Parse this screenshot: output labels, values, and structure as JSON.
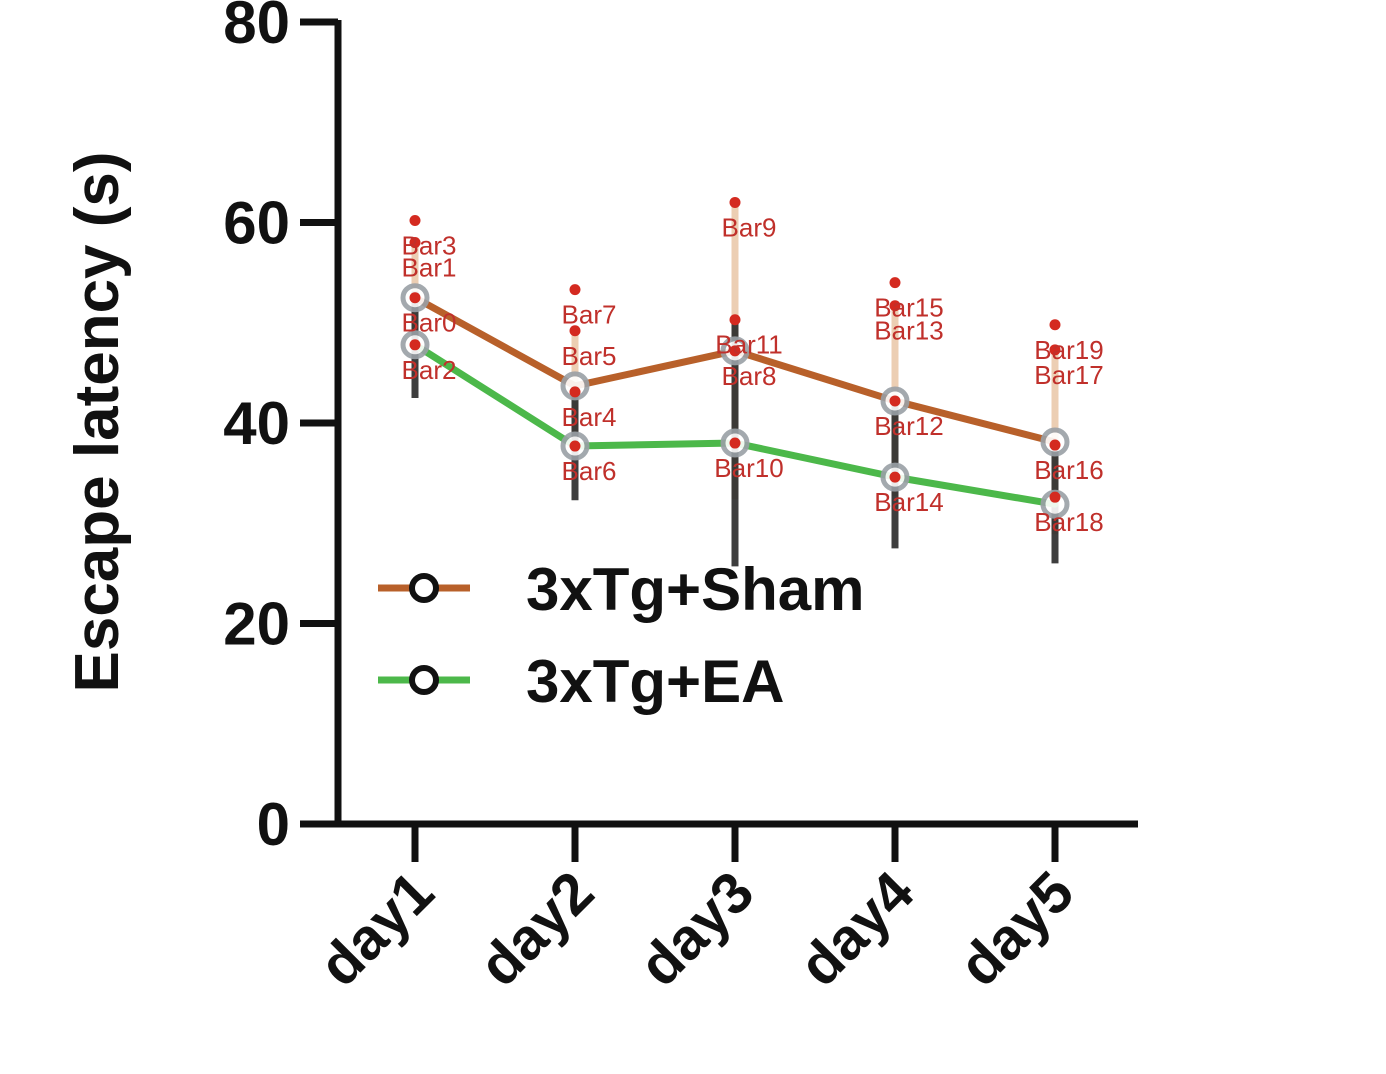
{
  "chart_data": {
    "type": "line",
    "title": "",
    "xlabel": "",
    "ylabel": "Escape latency (s)",
    "ylim": [
      0,
      80
    ],
    "yticks": [
      "0",
      "20",
      "40",
      "60",
      "80"
    ],
    "categories": [
      "day1",
      "day2",
      "day3",
      "day4",
      "day5"
    ],
    "grid": false,
    "legend_position": "bottom-left",
    "series": [
      {
        "name": "3xTg+Sham",
        "color": "#b8602a",
        "values": [
          52.5,
          43.7,
          47.2,
          42.2,
          38.1
        ],
        "error_upper": [
          58.0,
          49.2,
          62.0,
          51.7,
          47.3
        ],
        "error_lower": [
          47.0,
          38.2,
          32.4,
          32.7,
          28.9
        ]
      },
      {
        "name": "3xTg+EA",
        "color": "#4cb84a",
        "values": [
          47.8,
          37.7,
          38.0,
          34.6,
          31.9
        ],
        "error_upper": [
          53.1,
          43.1,
          50.3,
          41.7,
          37.8
        ],
        "error_lower": [
          42.5,
          32.3,
          25.7,
          27.5,
          26.0
        ]
      }
    ],
    "annotations": [
      {
        "text": "Bar0",
        "x": "day1",
        "y": 52.5
      },
      {
        "text": "Bar1",
        "x": "day1",
        "y": 58.0
      },
      {
        "text": "Bar2",
        "x": "day1",
        "y": 47.8
      },
      {
        "text": "Bar3",
        "x": "day1",
        "y": 60.2
      },
      {
        "text": "Bar4",
        "x": "day2",
        "y": 43.1
      },
      {
        "text": "Bar5",
        "x": "day2",
        "y": 49.2
      },
      {
        "text": "Bar6",
        "x": "day2",
        "y": 37.7
      },
      {
        "text": "Bar7",
        "x": "day2",
        "y": 53.3
      },
      {
        "text": "Bar8",
        "x": "day3",
        "y": 47.2
      },
      {
        "text": "Bar9",
        "x": "day3",
        "y": 62.0
      },
      {
        "text": "Bar10",
        "x": "day3",
        "y": 38.0
      },
      {
        "text": "Bar11",
        "x": "day3",
        "y": 50.3
      },
      {
        "text": "Bar12",
        "x": "day4",
        "y": 42.2
      },
      {
        "text": "Bar13",
        "x": "day4",
        "y": 51.7
      },
      {
        "text": "Bar14",
        "x": "day4",
        "y": 34.6
      },
      {
        "text": "Bar15",
        "x": "day4",
        "y": 54.0
      },
      {
        "text": "Bar16",
        "x": "day5",
        "y": 37.8
      },
      {
        "text": "Bar17",
        "x": "day5",
        "y": 47.3
      },
      {
        "text": "Bar18",
        "x": "day5",
        "y": 32.6
      },
      {
        "text": "Bar19",
        "x": "day5",
        "y": 49.8
      }
    ]
  }
}
